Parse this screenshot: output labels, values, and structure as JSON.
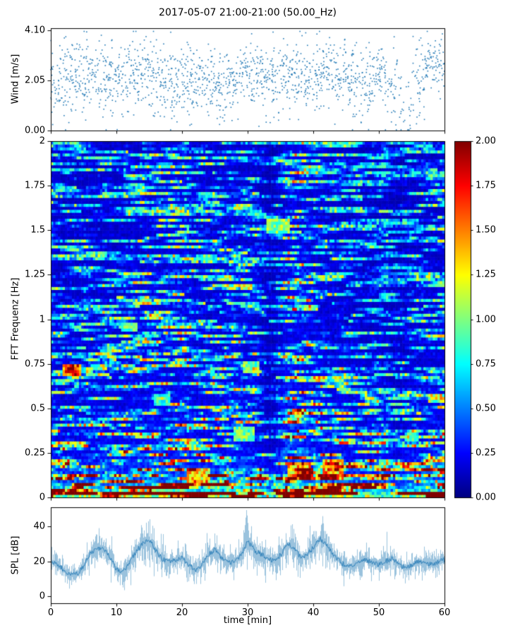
{
  "figure": {
    "title": "2017-05-07 21:00-21:00 (50.00_Hz)",
    "background": "#ffffff",
    "accent_color": "#1f77b4",
    "xlabel": "time [min]",
    "x_ticks": [
      {
        "value": 0,
        "label": "0"
      },
      {
        "value": 10,
        "label": "10"
      },
      {
        "value": 20,
        "label": "20"
      },
      {
        "value": 30,
        "label": "30"
      },
      {
        "value": 40,
        "label": "40"
      },
      {
        "value": 50,
        "label": "50"
      },
      {
        "value": 60,
        "label": "60"
      }
    ]
  },
  "chart_data": [
    {
      "id": "wind-scatter",
      "type": "scatter",
      "ylabel": "Wind [m/s]",
      "xlim": [
        0,
        60
      ],
      "ylim": [
        0,
        4.2
      ],
      "y_ticks": [
        {
          "value": 0.0,
          "label": "0.00"
        },
        {
          "value": 2.05,
          "label": "2.05"
        },
        {
          "value": 4.1,
          "label": "4.10"
        }
      ],
      "marker_color": "#1f77b4",
      "seed": 11,
      "bin_minutes": 2,
      "points_per_bin": 56,
      "envelope": {
        "mean": [
          2.0,
          2.1,
          2.2,
          2.3,
          2.2,
          2.0,
          2.2,
          2.3,
          2.1,
          2.0,
          2.0,
          1.9,
          2.1,
          2.0,
          2.1,
          2.2,
          2.1,
          2.2,
          2.3,
          2.2,
          2.3,
          2.4,
          2.2,
          2.0,
          1.9,
          2.2,
          1.6,
          1.0,
          2.0,
          2.9,
          2.8
        ],
        "spread": [
          0.75,
          0.75,
          0.7,
          0.7,
          0.75,
          0.8,
          0.7,
          0.7,
          0.75,
          0.8,
          0.75,
          0.8,
          0.7,
          0.8,
          0.75,
          0.7,
          0.75,
          0.7,
          0.7,
          0.75,
          0.7,
          0.65,
          0.7,
          0.75,
          0.8,
          0.7,
          0.8,
          0.7,
          0.9,
          0.55,
          0.55
        ],
        "density": [
          0.8,
          1,
          1,
          1,
          1,
          1,
          1,
          1,
          1,
          1,
          1,
          1,
          1,
          1,
          1,
          1,
          1,
          1,
          1,
          1,
          1,
          1,
          1,
          1,
          1,
          1,
          0.7,
          0.5,
          0.8,
          1,
          0.8
        ]
      }
    },
    {
      "id": "fft-spectrogram",
      "type": "heatmap",
      "ylabel": "FFT Frequenz [Hz]",
      "xlim": [
        0,
        60
      ],
      "ylim": [
        0,
        2
      ],
      "clim": [
        0,
        2
      ],
      "colormap": "jet",
      "y_ticks": [
        {
          "value": 0,
          "label": "0"
        },
        {
          "value": 0.25,
          "label": "0.25"
        },
        {
          "value": 0.5,
          "label": "0.5"
        },
        {
          "value": 0.75,
          "label": "0.75"
        },
        {
          "value": 1,
          "label": "1"
        },
        {
          "value": 1.25,
          "label": "1.25"
        },
        {
          "value": 1.5,
          "label": "1.5"
        },
        {
          "value": 1.75,
          "label": "1.75"
        },
        {
          "value": 2,
          "label": "2"
        }
      ],
      "colorbar_ticks": [
        {
          "value": 0.0,
          "label": "0.00"
        },
        {
          "value": 0.25,
          "label": "0.25"
        },
        {
          "value": 0.5,
          "label": "0.50"
        },
        {
          "value": 0.75,
          "label": "0.75"
        },
        {
          "value": 1.0,
          "label": "1.00"
        },
        {
          "value": 1.25,
          "label": "1.25"
        },
        {
          "value": 1.5,
          "label": "1.50"
        },
        {
          "value": 1.75,
          "label": "1.75"
        },
        {
          "value": 2.0,
          "label": "2.00"
        }
      ],
      "seed": 23,
      "freq_profile": [
        [
          0,
          2.3
        ],
        [
          0.02,
          2.1
        ],
        [
          0.04,
          1.6
        ],
        [
          0.07,
          1.1
        ],
        [
          0.1,
          0.85
        ],
        [
          0.15,
          0.68
        ],
        [
          0.22,
          0.55
        ],
        [
          0.32,
          0.47
        ],
        [
          0.5,
          0.41
        ],
        [
          0.8,
          0.37
        ],
        [
          1.2,
          0.34
        ],
        [
          1.6,
          0.32
        ],
        [
          2,
          0.31
        ]
      ],
      "features": [
        {
          "t": 3.2,
          "f": 0.72,
          "dt": 1.5,
          "df": 0.035,
          "v": 1.7
        },
        {
          "t": 34.5,
          "f": 1.52,
          "dt": 1.8,
          "df": 0.04,
          "v": 1.0
        },
        {
          "t": 30.5,
          "f": 0.73,
          "dt": 1.2,
          "df": 0.03,
          "v": 0.95
        },
        {
          "t": 12.0,
          "f": 0.96,
          "dt": 1.2,
          "df": 0.03,
          "v": 0.9
        },
        {
          "t": 29.5,
          "f": 0.36,
          "dt": 1.5,
          "df": 0.04,
          "v": 0.95
        },
        {
          "t": 38.0,
          "f": 0.15,
          "dt": 1.8,
          "df": 0.05,
          "v": 1.35
        },
        {
          "t": 43.0,
          "f": 0.17,
          "dt": 1.5,
          "df": 0.05,
          "v": 1.4
        },
        {
          "t": 22.5,
          "f": 0.12,
          "dt": 1.8,
          "df": 0.05,
          "v": 1.3
        },
        {
          "t": 55.0,
          "f": 0.34,
          "dt": 1.2,
          "df": 0.03,
          "v": 0.85
        },
        {
          "t": 17.0,
          "f": 0.55,
          "dt": 1.2,
          "df": 0.03,
          "v": 0.85
        }
      ],
      "column_features": [
        {
          "t": 33.6,
          "dt": 1.0,
          "gain": 0.62
        },
        {
          "t": 52.5,
          "dt": 0.9,
          "gain": 0.8
        },
        {
          "t": 37.0,
          "dt": 1.5,
          "gain": 1.25
        },
        {
          "t": 30.0,
          "dt": 1.3,
          "gain": 1.12
        }
      ]
    },
    {
      "id": "spl-line",
      "type": "line",
      "ylabel": "SPL [dB]",
      "xlim": [
        0,
        60
      ],
      "ylim": [
        -4,
        51
      ],
      "y_ticks": [
        {
          "value": 0,
          "label": "0"
        },
        {
          "value": 20,
          "label": "20"
        },
        {
          "value": 40,
          "label": "40"
        }
      ],
      "line_color": "#1f77b4",
      "seed": 5,
      "noise_base": 4,
      "minute_means": [
        20,
        18,
        15,
        12,
        13,
        18,
        25,
        28,
        27,
        22,
        15,
        14,
        20,
        26,
        30,
        32,
        26,
        21,
        20,
        21,
        22,
        18,
        15,
        18,
        24,
        27,
        22,
        19,
        20,
        24,
        32,
        26,
        24,
        22,
        20,
        24,
        30,
        28,
        22,
        24,
        28,
        33,
        30,
        24,
        20,
        17,
        18,
        20,
        21,
        19,
        18,
        20,
        22,
        18,
        16,
        18,
        20,
        19,
        18,
        20,
        21
      ],
      "spikes": [
        {
          "t": 29.8,
          "v": 50
        },
        {
          "t": 41.4,
          "v": 46
        }
      ]
    }
  ]
}
